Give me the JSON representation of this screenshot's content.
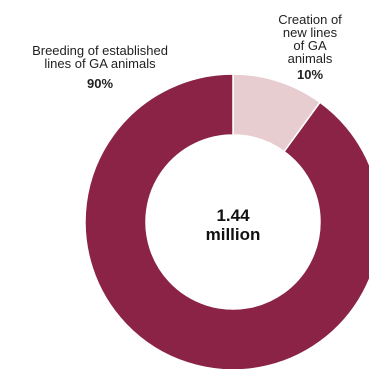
{
  "chart_data": {
    "type": "pie",
    "donut": true,
    "slices": [
      {
        "label": "Breeding of established lines of GA animals",
        "value": 90,
        "value_label": "90%",
        "color": "#8a2346"
      },
      {
        "label": "Creation of new lines of GA animals",
        "value": 10,
        "value_label": "10%",
        "color": "#e8cdd0"
      }
    ],
    "center_label": [
      "1.44",
      "million"
    ],
    "slice_border_color": "#ffffff"
  }
}
